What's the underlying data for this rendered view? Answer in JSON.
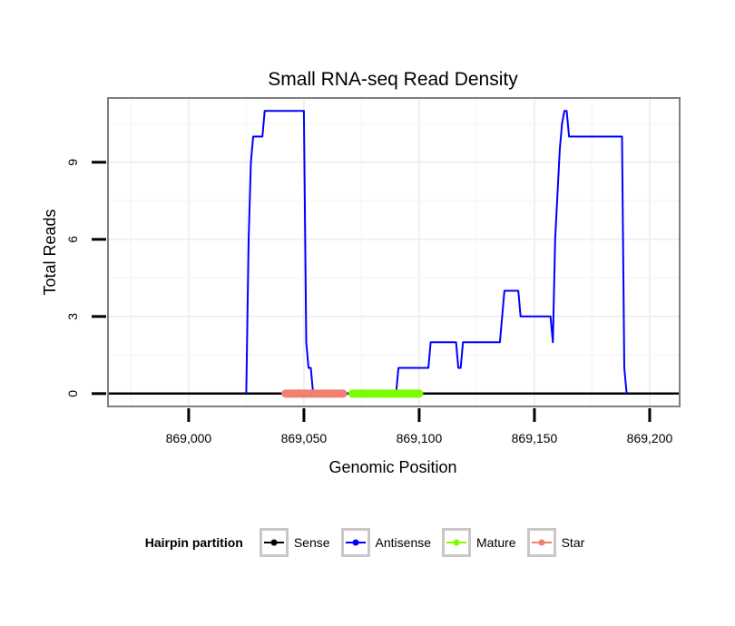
{
  "chart_data": {
    "type": "line",
    "title": "Small RNA-seq Read Density",
    "xlabel": "Genomic Position",
    "ylabel": "Total Reads",
    "xlim": [
      868965,
      869213
    ],
    "ylim": [
      -0.5,
      11.5
    ],
    "x_ticks": [
      869000,
      869050,
      869100,
      869150,
      869200
    ],
    "x_tick_labels": [
      "869,000",
      "869,050",
      "869,100",
      "869,150",
      "869,200"
    ],
    "y_ticks": [
      0,
      3,
      6,
      9
    ],
    "y_tick_labels": [
      "0",
      "3",
      "6",
      "9"
    ],
    "grid": true,
    "legend_position": "bottom",
    "legend_title": "Hairpin partition",
    "series": [
      {
        "name": "Sense",
        "color": "#000000",
        "width": 2.5,
        "x": [
          868965,
          869213
        ],
        "y": [
          0,
          0
        ]
      },
      {
        "name": "Antisense",
        "color": "#0000ff",
        "width": 2,
        "x": [
          869025,
          869026,
          869027,
          869028,
          869030,
          869031,
          869032,
          869033,
          869034,
          869035,
          869036,
          869037,
          869050,
          869051,
          869052,
          869053,
          869054,
          869055,
          869056,
          869090,
          869091,
          869104,
          869105,
          869116,
          869117,
          869118,
          869119,
          869135,
          869137,
          869143,
          869144,
          869157,
          869158,
          869159,
          869161,
          869162,
          869163,
          869164,
          869165,
          869166,
          869188,
          869189,
          869190
        ],
        "y": [
          0,
          6,
          9,
          10,
          10,
          10,
          10,
          11,
          11,
          11,
          11,
          11,
          11,
          2,
          1,
          1,
          0,
          0,
          0,
          0,
          1,
          1,
          2,
          2,
          1,
          1,
          2,
          2,
          4,
          4,
          3,
          3,
          2,
          6,
          9.5,
          10.5,
          11,
          11,
          10,
          10,
          10,
          1,
          0
        ]
      }
    ],
    "segments": [
      {
        "name": "Star",
        "color": "#f08070",
        "x": [
          869042,
          869067
        ],
        "y": 0
      },
      {
        "name": "Mature",
        "color": "#7cfc00",
        "x": [
          869071,
          869100
        ],
        "y": 0
      }
    ],
    "legend": [
      {
        "label": "Sense",
        "color": "#000000"
      },
      {
        "label": "Antisense",
        "color": "#0000ff"
      },
      {
        "label": "Mature",
        "color": "#7cfc00"
      },
      {
        "label": "Star",
        "color": "#f08070"
      }
    ]
  }
}
